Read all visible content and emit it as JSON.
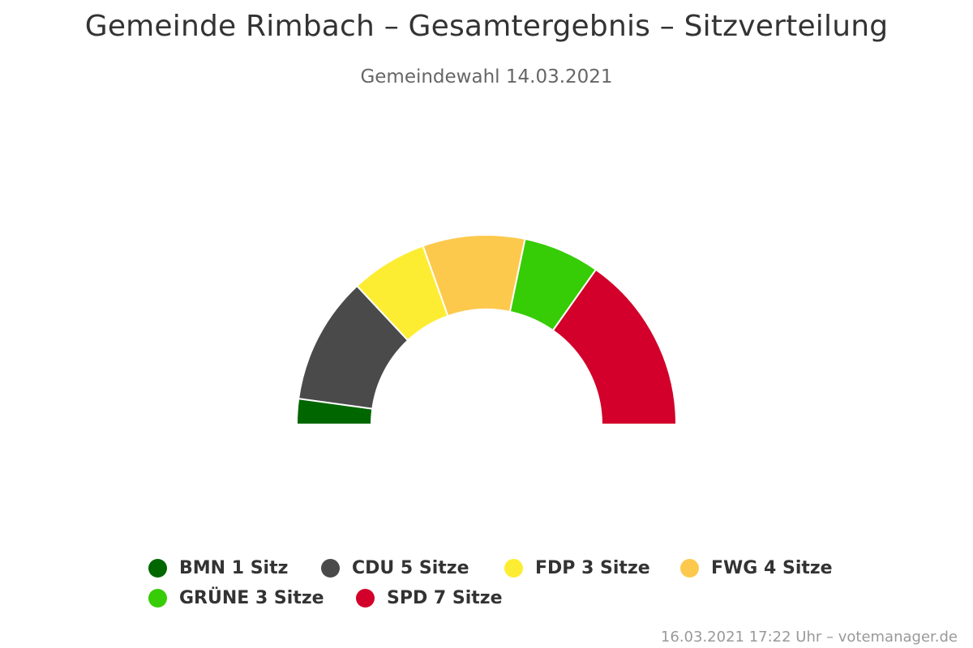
{
  "chart_data": {
    "type": "pie",
    "variant": "parliament-semicircle",
    "title": "Gemeinde Rimbach – Gesamtergebnis – Sitzverteilung",
    "subtitle": "Gemeindewahl 14.03.2021",
    "unit_singular": "Sitz",
    "unit_plural": "Sitze",
    "series": [
      {
        "name": "BMN",
        "value": 1,
        "color": "#006600",
        "legend_label": "BMN 1 Sitz"
      },
      {
        "name": "CDU",
        "value": 5,
        "color": "#4a4a4a",
        "legend_label": "CDU 5 Sitze"
      },
      {
        "name": "FDP",
        "value": 3,
        "color": "#fded32",
        "legend_label": "FDP 3 Sitze"
      },
      {
        "name": "FWG",
        "value": 4,
        "color": "#fdc94d",
        "legend_label": "FWG 4 Sitze"
      },
      {
        "name": "GRÜNE",
        "value": 3,
        "color": "#36cc06",
        "legend_label": "GRÜNE 3 Sitze"
      },
      {
        "name": "SPD",
        "value": 7,
        "color": "#d2002a",
        "legend_label": "SPD 7 Sitze"
      }
    ],
    "legend_placement": "bottom"
  },
  "credit": "16.03.2021 17:22 Uhr – votemanager.de"
}
